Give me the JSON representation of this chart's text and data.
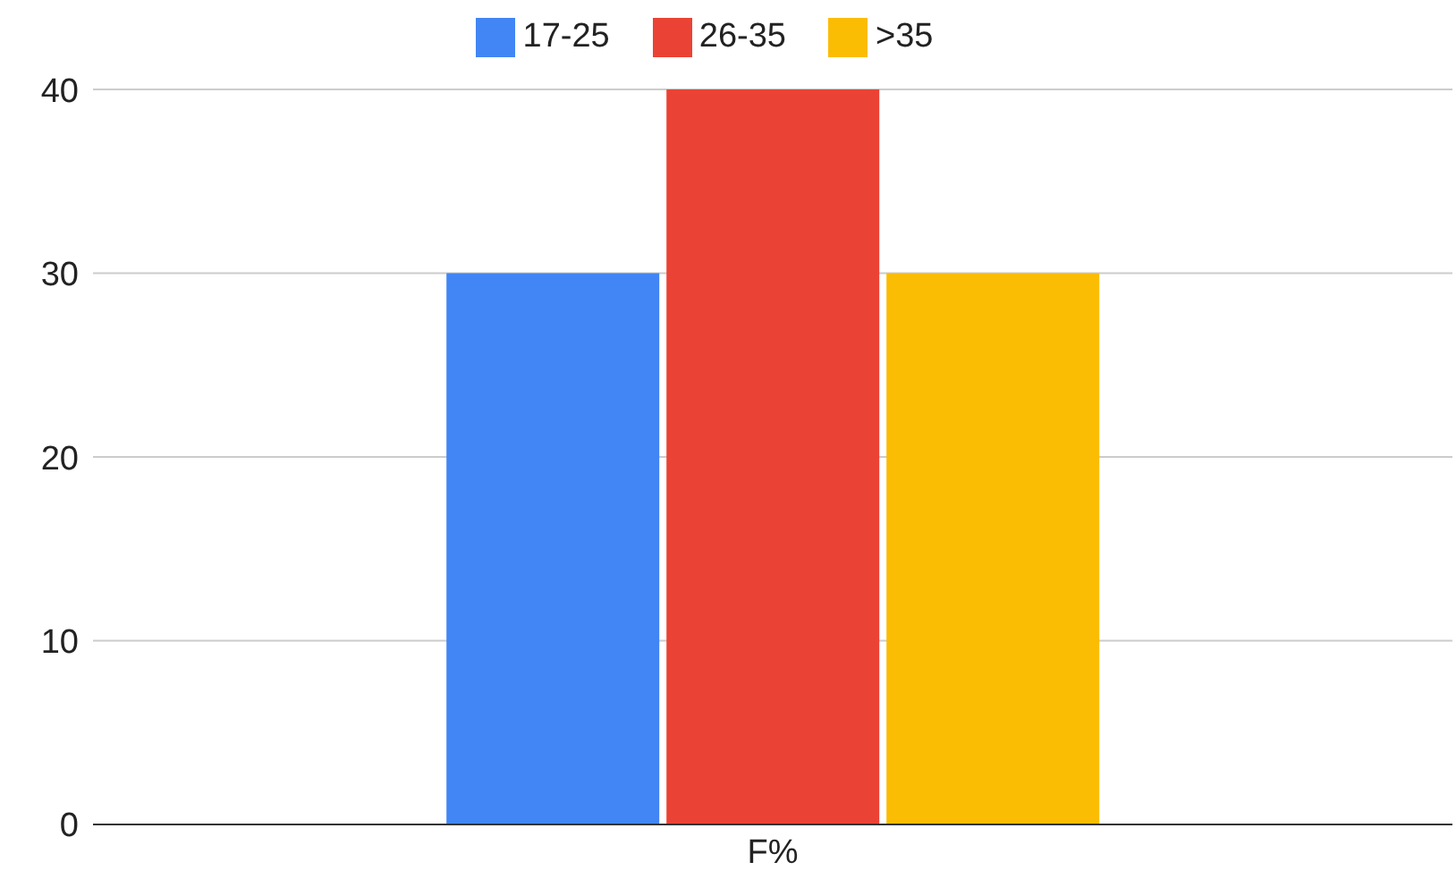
{
  "chart_data": {
    "type": "bar",
    "categories": [
      "F%"
    ],
    "series": [
      {
        "name": "17-25",
        "color": "#4285f4",
        "values": [
          30
        ]
      },
      {
        "name": "26-35",
        "color": "#ea4335",
        "values": [
          40
        ]
      },
      {
        "name": ">35",
        "color": "#fbbc04",
        "values": [
          30
        ]
      }
    ],
    "ylim": [
      0,
      40
    ],
    "yticks": [
      0,
      10,
      20,
      30,
      40
    ],
    "grid": "y",
    "legend": "top"
  }
}
